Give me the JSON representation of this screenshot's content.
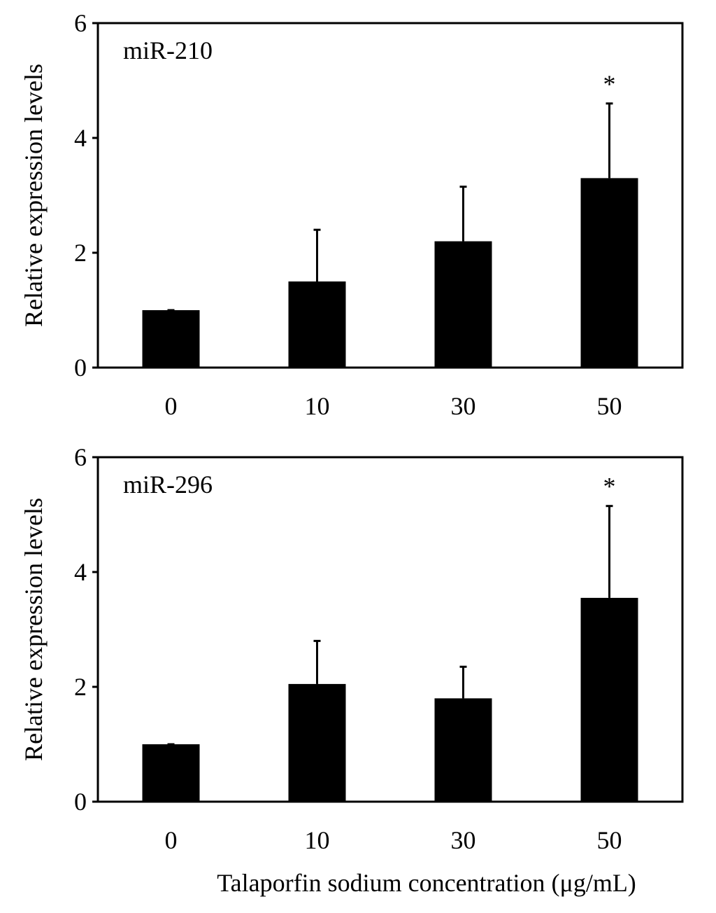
{
  "x_axis_title": "Talaporfin sodium concentration (μg/mL)",
  "chart_data": [
    {
      "type": "bar",
      "label": "miR-210",
      "categories": [
        "0",
        "10",
        "30",
        "50"
      ],
      "values": [
        1.0,
        1.5,
        2.2,
        3.3
      ],
      "error": [
        0.0,
        0.9,
        0.95,
        1.3
      ],
      "significance": [
        "",
        "",
        "",
        "*"
      ],
      "ylabel": "Relative expression levels",
      "xlabel": "",
      "ylim": [
        0,
        6
      ],
      "yticks": [
        0,
        2,
        4,
        6
      ]
    },
    {
      "type": "bar",
      "label": "miR-296",
      "categories": [
        "0",
        "10",
        "30",
        "50"
      ],
      "values": [
        1.0,
        2.05,
        1.8,
        3.55
      ],
      "error": [
        0.0,
        0.75,
        0.55,
        1.6
      ],
      "significance": [
        "",
        "",
        "",
        "*"
      ],
      "ylabel": "Relative expression levels",
      "xlabel": "Talaporfin sodium concentration (μg/mL)",
      "ylim": [
        0,
        6
      ],
      "yticks": [
        0,
        2,
        4,
        6
      ]
    }
  ]
}
